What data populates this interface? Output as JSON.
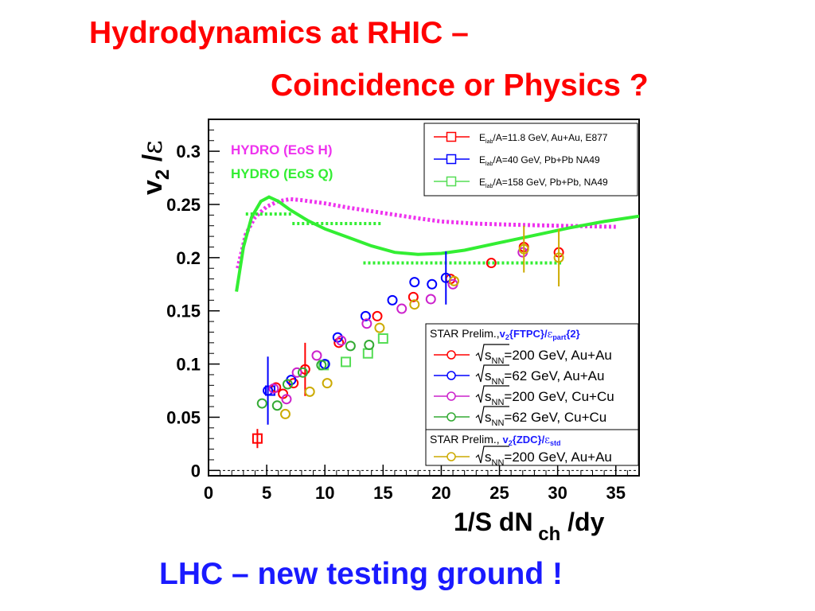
{
  "slide": {
    "title_line1": "Hydrodynamics at RHIC –",
    "title_line2": "Coincidence or Physics ?",
    "bottom_text": "LHC – new testing ground !"
  },
  "colors": {
    "title": "#ff0000",
    "bottom_text": "#1a1aff",
    "hydro_h": "#ee33ee",
    "hydro_q": "#33ee33"
  },
  "chart_data": {
    "type": "scatter",
    "ylabel": "v2/ε",
    "xlabel": "1/S dNch/dy",
    "xlim": [
      0,
      37
    ],
    "ylim": [
      -0.005,
      0.33
    ],
    "xticks": [
      0,
      5,
      10,
      15,
      20,
      25,
      30,
      35
    ],
    "xtick_labels": [
      "0",
      "5",
      "10",
      "15",
      "20",
      "25",
      "30",
      "35"
    ],
    "yticks": [
      0,
      0.05,
      0.1,
      0.15,
      0.2,
      0.25,
      0.3
    ],
    "ytick_labels": [
      "0",
      "0.05",
      "0.1",
      "0.15",
      "0.2",
      "0.25",
      "0.3"
    ],
    "annotations": [
      {
        "text": "HYDRO (EoS H)",
        "color": "#ee33ee"
      },
      {
        "text": "HYDRO (EoS Q)",
        "color": "#33ee33"
      }
    ],
    "legend_top": [
      {
        "text": "E lab /A=11.8 GeV, Au+Au, E877",
        "color": "#ff0000"
      },
      {
        "text": "E lab /A=40 GeV, Pb+Pb NA49",
        "color": "#0000ff"
      },
      {
        "text": "E lab /A=158 GeV, Pb+Pb, NA49",
        "color": "#55dd55"
      }
    ],
    "legend_star_header": "STAR Prelim., v2{FTPC}/εpart{2}",
    "legend_star": [
      {
        "text": "√sNN=200 GeV, Au+Au",
        "color": "#ff0000"
      },
      {
        "text": "√sNN=62 GeV, Au+Au",
        "color": "#0000ff"
      },
      {
        "text": "√sNN=200 GeV, Cu+Cu",
        "color": "#cc22cc"
      },
      {
        "text": "√sNN=62 GeV, Cu+Cu",
        "color": "#33aa33"
      }
    ],
    "legend_zdc_header": "STAR Prelim., v2{ZDC}/εstd",
    "legend_zdc": [
      {
        "text": "√sNN=200 GeV, Au+Au",
        "color": "#ccaa00"
      }
    ],
    "series": [
      {
        "name": "Elab/A=11.8 GeV, Au+Au, E877",
        "marker": "square",
        "color": "#ff0000",
        "points": [
          [
            4.2,
            0.03,
            0.009
          ]
        ]
      },
      {
        "name": "Elab/A=40 GeV, Pb+Pb NA49",
        "marker": "square",
        "color": "#0000ff",
        "points": [
          [
            5.3,
            0.075,
            0.0
          ]
        ]
      },
      {
        "name": "Elab/A=158 GeV, Pb+Pb, NA49",
        "marker": "square",
        "color": "#55dd55",
        "points": [
          [
            9.9,
            0.099,
            0.0
          ],
          [
            11.8,
            0.102,
            0.0
          ],
          [
            13.7,
            0.11,
            0.0
          ],
          [
            15.0,
            0.124,
            0.0
          ]
        ]
      },
      {
        "name": "STAR 200 GeV Au+Au (FTPC)",
        "marker": "circle",
        "color": "#ff0000",
        "points": [
          [
            5.8,
            0.078,
            0.0
          ],
          [
            6.4,
            0.072,
            0.0
          ],
          [
            7.3,
            0.082,
            0.0
          ],
          [
            8.3,
            0.095,
            0.025
          ],
          [
            11.2,
            0.12,
            0.0
          ],
          [
            14.5,
            0.145,
            0.0
          ],
          [
            17.6,
            0.163,
            0.0
          ],
          [
            20.8,
            0.18,
            0.0
          ],
          [
            24.3,
            0.195,
            0.0
          ],
          [
            27.1,
            0.21,
            0.0
          ],
          [
            30.1,
            0.205,
            0.0
          ]
        ]
      },
      {
        "name": "STAR 62 GeV Au+Au (FTPC)",
        "marker": "circle",
        "color": "#0000ff",
        "points": [
          [
            5.1,
            0.075,
            0.032
          ],
          [
            7.1,
            0.085,
            0.0
          ],
          [
            10.0,
            0.1,
            0.0
          ],
          [
            11.1,
            0.125,
            0.0
          ],
          [
            13.5,
            0.145,
            0.0
          ],
          [
            15.8,
            0.16,
            0.0
          ],
          [
            17.7,
            0.177,
            0.0
          ],
          [
            19.2,
            0.175,
            0.0
          ],
          [
            20.4,
            0.181,
            0.025
          ]
        ]
      },
      {
        "name": "STAR 200 GeV Cu+Cu (FTPC)",
        "marker": "circle",
        "color": "#cc22cc",
        "points": [
          [
            5.6,
            0.077,
            0.0
          ],
          [
            6.7,
            0.067,
            0.0
          ],
          [
            7.6,
            0.092,
            0.0
          ],
          [
            9.3,
            0.108,
            0.0
          ],
          [
            11.4,
            0.122,
            0.0
          ],
          [
            13.6,
            0.138,
            0.0
          ],
          [
            16.6,
            0.152,
            0.0
          ],
          [
            19.1,
            0.161,
            0.0
          ],
          [
            21.0,
            0.175,
            0.0
          ],
          [
            27.0,
            0.205,
            0.0
          ]
        ]
      },
      {
        "name": "STAR 62 GeV Cu+Cu (FTPC)",
        "marker": "circle",
        "color": "#33aa33",
        "points": [
          [
            4.6,
            0.063,
            0.0
          ],
          [
            5.9,
            0.061,
            0.0
          ],
          [
            6.8,
            0.081,
            0.0
          ],
          [
            8.1,
            0.092,
            0.0
          ],
          [
            9.7,
            0.099,
            0.0
          ],
          [
            12.2,
            0.117,
            0.0
          ],
          [
            13.8,
            0.118,
            0.0
          ]
        ]
      },
      {
        "name": "STAR 200 GeV Au+Au (ZDC)",
        "marker": "circle",
        "color": "#ccaa00",
        "points": [
          [
            6.6,
            0.053,
            0.0
          ],
          [
            8.7,
            0.074,
            0.0
          ],
          [
            10.2,
            0.082,
            0.0
          ],
          [
            14.7,
            0.134,
            0.0
          ],
          [
            17.7,
            0.156,
            0.0
          ],
          [
            21.1,
            0.178,
            0.0
          ],
          [
            27.1,
            0.208,
            0.022
          ],
          [
            30.1,
            0.2,
            0.027
          ]
        ]
      }
    ],
    "hydro_curves": [
      {
        "name": "HYDRO (EoS H)",
        "style": "dotted",
        "color": "#ee33ee",
        "points": [
          [
            2.5,
            0.19
          ],
          [
            3.2,
            0.222
          ],
          [
            4.0,
            0.238
          ],
          [
            5.0,
            0.248
          ],
          [
            6.0,
            0.253
          ],
          [
            7.0,
            0.255
          ],
          [
            8.0,
            0.254
          ],
          [
            10.0,
            0.251
          ],
          [
            12.0,
            0.247
          ],
          [
            15.0,
            0.242
          ],
          [
            18.0,
            0.237
          ],
          [
            20.0,
            0.234
          ],
          [
            23.0,
            0.232
          ],
          [
            26.0,
            0.231
          ],
          [
            30.0,
            0.23
          ],
          [
            35.0,
            0.229
          ]
        ]
      },
      {
        "name": "HYDRO (EoS Q)",
        "style": "solid",
        "color": "#33ee33",
        "points": [
          [
            2.4,
            0.168
          ],
          [
            3.0,
            0.21
          ],
          [
            3.7,
            0.238
          ],
          [
            4.5,
            0.253
          ],
          [
            5.2,
            0.257
          ],
          [
            6.0,
            0.253
          ],
          [
            7.0,
            0.245
          ],
          [
            8.5,
            0.235
          ],
          [
            10.0,
            0.227
          ],
          [
            12.0,
            0.219
          ],
          [
            14.0,
            0.211
          ],
          [
            16.0,
            0.205
          ],
          [
            18.0,
            0.203
          ],
          [
            20.0,
            0.204
          ],
          [
            22.0,
            0.207
          ],
          [
            25.0,
            0.214
          ],
          [
            28.0,
            0.221
          ],
          [
            31.0,
            0.228
          ],
          [
            34.0,
            0.234
          ],
          [
            37.0,
            0.239
          ]
        ]
      }
    ],
    "hydro_segments": [
      {
        "x": [
          3.2,
          7.2
        ],
        "y": 0.241
      },
      {
        "x": [
          7.2,
          14.8
        ],
        "y": 0.232
      },
      {
        "x": [
          13.3,
          30.3
        ],
        "y": 0.195
      }
    ]
  }
}
